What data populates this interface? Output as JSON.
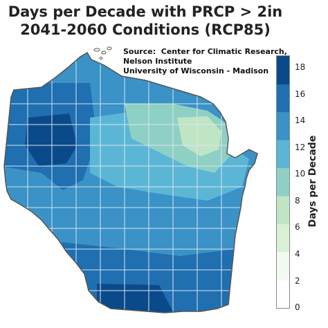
{
  "title_line1": "Days per Decade with PRCP > 2in",
  "title_line2": "2041-2060 Conditions (RCP85)",
  "source_line1": "Source:  Center for Climatic Research,",
  "source_line2": "Nelson Institute",
  "source_line3": "University of Wisconsin - Madison",
  "colorbar_label": "Days per Decade",
  "colorbar_ticks": [
    "0",
    "2",
    "4",
    "6",
    "8",
    "10",
    "12",
    "14",
    "16",
    "18"
  ],
  "colors": {
    "c0": "#ffffff",
    "c2": "#f2faf0",
    "c4": "#d9f0d5",
    "c6": "#bfe5c5",
    "c8": "#8fd0c4",
    "c10": "#5bb6d6",
    "c12": "#3a92c6",
    "c14": "#1f6fb1",
    "c16": "#0b4a8a"
  }
}
